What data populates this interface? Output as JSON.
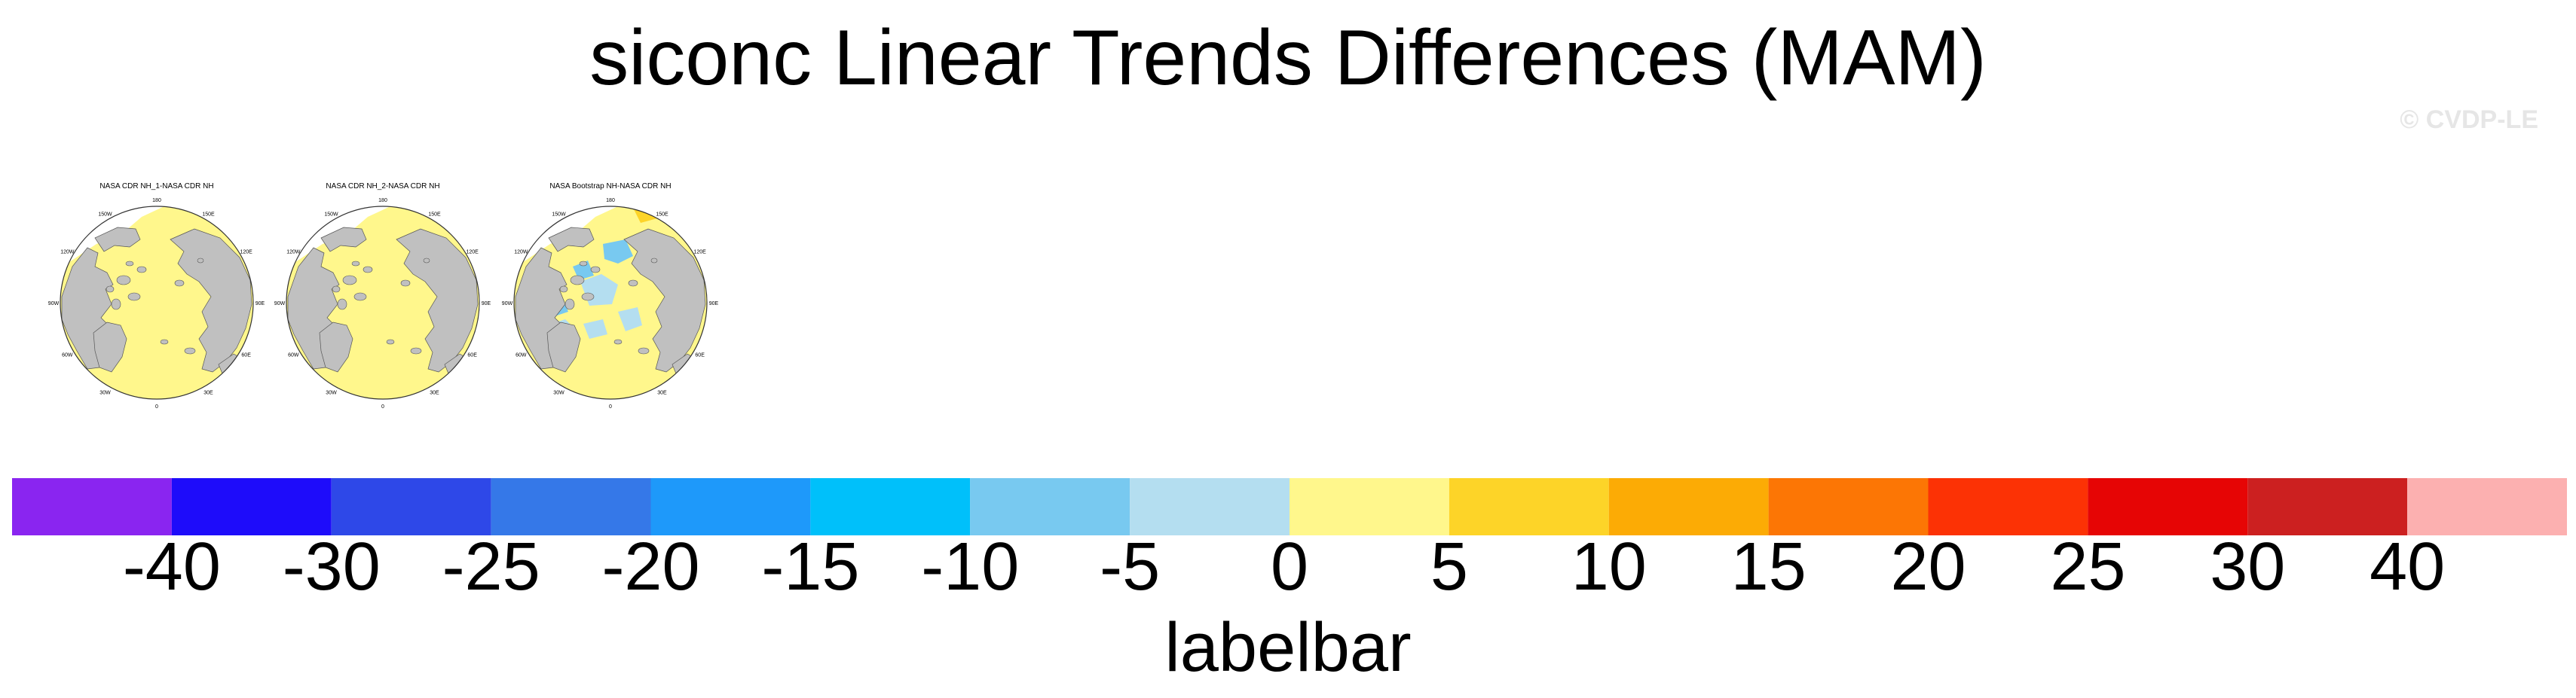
{
  "title": "siconc Linear Trends Differences (MAM)",
  "watermark": "© CVDP-LE",
  "panels": [
    {
      "title": "NASA CDR NH_1-NASA CDR NH",
      "variant": 0
    },
    {
      "title": "NASA CDR NH_2-NASA CDR NH",
      "variant": 1
    },
    {
      "title": "NASA Bootstrap NH-NASA CDR NH",
      "variant": 2
    }
  ],
  "map_labels": {
    "top": "180",
    "upper_left": "150W",
    "upper_right": "150E",
    "mid_left_upper": "120W",
    "mid_right_upper": "120E",
    "left": "90W",
    "right": "90E",
    "lower_left": "60W",
    "lower_right": "60E",
    "bottom_left": "30W",
    "bottom_right": "30E",
    "bottom": "0"
  },
  "chart_data": {
    "type": "heatmap",
    "title": "siconc Linear Trends Differences (MAM)",
    "variable": "siconc",
    "season": "MAM",
    "labelbar": {
      "title": "labelbar",
      "levels": [
        -40,
        -30,
        -25,
        -20,
        -15,
        -10,
        -5,
        0,
        5,
        10,
        15,
        20,
        25,
        30,
        40
      ],
      "level_labels": [
        "-40",
        "-30",
        "-25",
        "-20",
        "-15",
        "-10",
        "-5",
        "0",
        "5",
        "10",
        "15",
        "20",
        "25",
        "30",
        "40"
      ],
      "colors": [
        "#8a25f0",
        "#1e0cfa",
        "#2e48e8",
        "#3578e8",
        "#1e99fa",
        "#00c0fa",
        "#78c9f0",
        "#b4def0",
        "#fff78c",
        "#fdd428",
        "#fcab05",
        "#fc7605",
        "#fc3205",
        "#e60505",
        "#cc2020",
        "#fcb0b0"
      ]
    },
    "land_color": "#c0c0c0",
    "panels": [
      "NASA CDR NH_1-NASA CDR NH",
      "NASA CDR NH_2-NASA CDR NH",
      "NASA Bootstrap NH-NASA CDR NH"
    ]
  }
}
